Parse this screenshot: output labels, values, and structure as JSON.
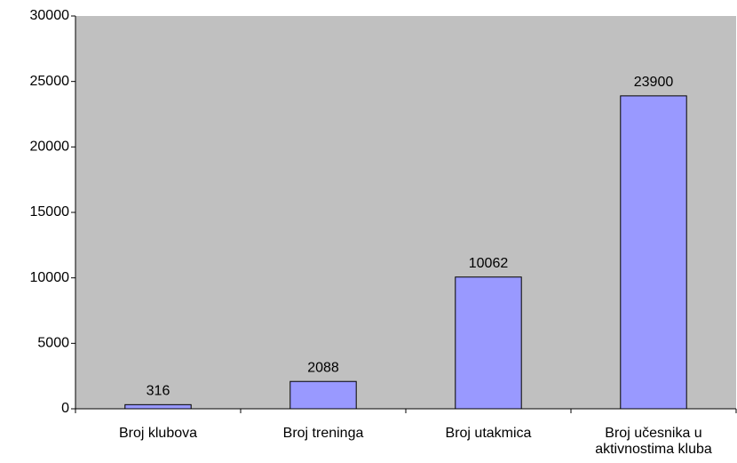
{
  "chart_data": {
    "type": "bar",
    "categories": [
      "Broj klubova",
      "Broj treninga",
      "Broj utakmica",
      "Broj učesnika u aktivnostima kluba"
    ],
    "values": [
      316,
      2088,
      10062,
      23900
    ],
    "color": "#9999ff",
    "plot_background": "#c0c0c0",
    "ylim": [
      0,
      30000
    ],
    "yticks": [
      0,
      5000,
      10000,
      15000,
      20000,
      25000,
      30000
    ]
  }
}
